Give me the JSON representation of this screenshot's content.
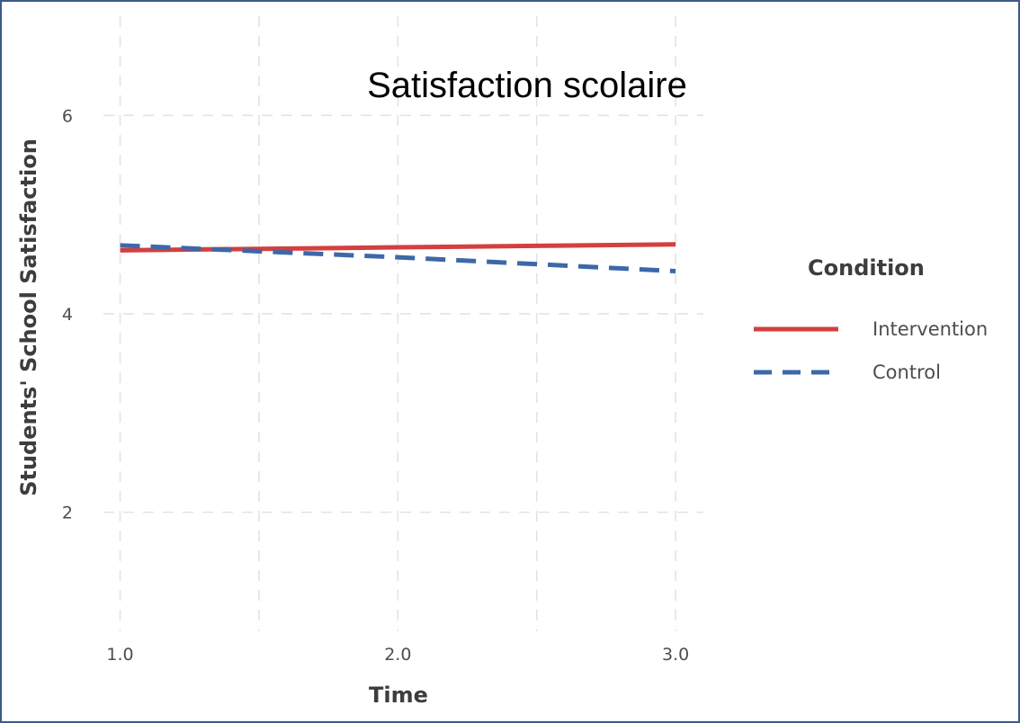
{
  "chart_data": {
    "type": "line",
    "title": "Satisfaction scolaire",
    "xlabel": "Time",
    "ylabel": "Students' School Satisfaction",
    "xlim": [
      0.94,
      3.1
    ],
    "ylim": [
      0.8,
      7.0
    ],
    "x_ticks": [
      1.0,
      2.0,
      3.0
    ],
    "x_tick_labels": [
      "1.0",
      "2.0",
      "3.0"
    ],
    "y_ticks": [
      2,
      4,
      6
    ],
    "y_tick_labels": [
      "2",
      "4",
      "6"
    ],
    "grid": true,
    "legend": {
      "title": "Condition",
      "placement": "right"
    },
    "series": [
      {
        "name": "Intervention",
        "color": "#d43f3f",
        "line_style": "solid",
        "x": [
          1.0,
          1.5,
          2.0,
          2.5,
          3.0
        ],
        "values": [
          4.64,
          4.655,
          4.67,
          4.685,
          4.7
        ]
      },
      {
        "name": "Control",
        "color": "#3d68a8",
        "line_style": "dashed",
        "x": [
          1.0,
          1.5,
          2.0,
          2.5,
          3.0
        ],
        "values": [
          4.69,
          4.63,
          4.57,
          4.5,
          4.43
        ]
      }
    ]
  }
}
